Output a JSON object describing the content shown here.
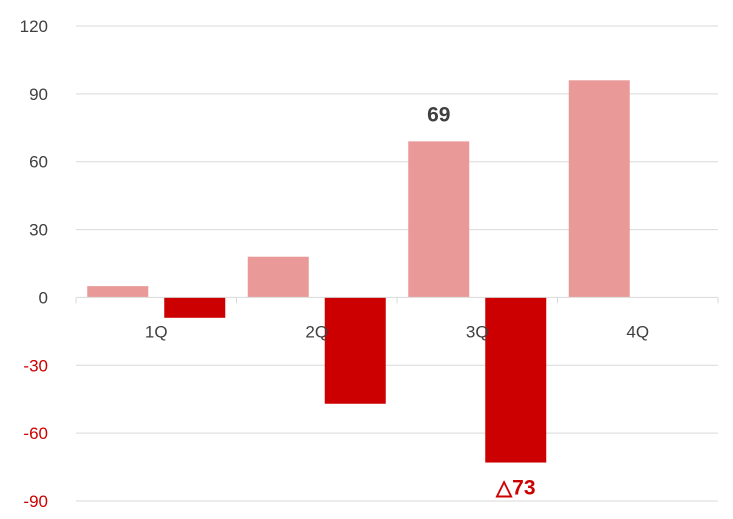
{
  "chart_data": {
    "type": "bar",
    "categories": [
      "1Q",
      "2Q",
      "3Q",
      "4Q"
    ],
    "series": [
      {
        "values": [
          5,
          18,
          69,
          96
        ],
        "color": "#EA9999"
      },
      {
        "values": [
          -9,
          -47,
          -73,
          null
        ],
        "color": "#CC0000"
      }
    ],
    "ylim": [
      -90,
      120
    ],
    "yticks": [
      120,
      90,
      60,
      30,
      0,
      -30,
      -60,
      -90
    ],
    "ytick_labels": [
      "120",
      "90",
      "60",
      "30",
      "0",
      "-30",
      "-60",
      "-90"
    ],
    "positive_tick_color": "#404040",
    "negative_tick_color": "#CC0000",
    "grid": true,
    "annotations": [
      {
        "category": "3Q",
        "series": 0,
        "text": "69",
        "color": "#404040"
      },
      {
        "category": "3Q",
        "series": 1,
        "text": "△73",
        "color": "#CC0000"
      }
    ]
  }
}
